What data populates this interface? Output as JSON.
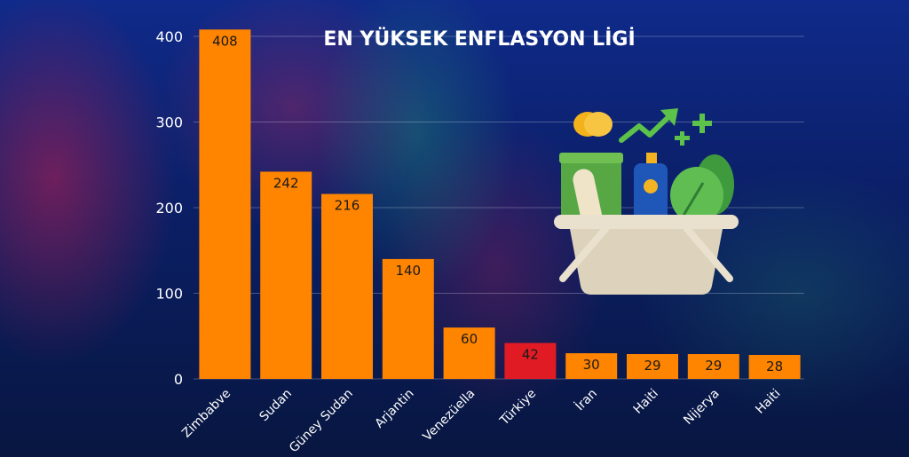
{
  "chart_data": {
    "type": "bar",
    "title": "EN YÜKSEK ENFLASYON LİGİ",
    "categories": [
      "Zimbabve",
      "Sudan",
      "Güney Sudan",
      "Arjantin",
      "Venezüella",
      "Türkiye",
      "İran",
      "Haiti",
      "Nijerya",
      "Haiti"
    ],
    "values": [
      408,
      242,
      216,
      140,
      60,
      42,
      30,
      29,
      29,
      28
    ],
    "highlight_index": 5,
    "ylim": [
      0,
      400
    ],
    "yticks": [
      0,
      100,
      200,
      300,
      400
    ],
    "grid": true,
    "colors": {
      "bar": "#ff8400",
      "highlight": "#e01b24"
    }
  },
  "illustration": {
    "icon": "grocery-basket-icon"
  }
}
